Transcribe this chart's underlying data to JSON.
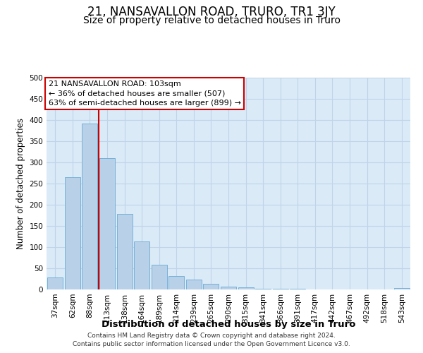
{
  "title": "21, NANSAVALLON ROAD, TRURO, TR1 3JY",
  "subtitle": "Size of property relative to detached houses in Truro",
  "xlabel": "Distribution of detached houses by size in Truro",
  "ylabel": "Number of detached properties",
  "footer_line1": "Contains HM Land Registry data © Crown copyright and database right 2024.",
  "footer_line2": "Contains public sector information licensed under the Open Government Licence v3.0.",
  "categories": [
    "37sqm",
    "62sqm",
    "88sqm",
    "113sqm",
    "138sqm",
    "164sqm",
    "189sqm",
    "214sqm",
    "239sqm",
    "265sqm",
    "290sqm",
    "315sqm",
    "341sqm",
    "366sqm",
    "391sqm",
    "417sqm",
    "442sqm",
    "467sqm",
    "492sqm",
    "518sqm",
    "543sqm"
  ],
  "values": [
    28,
    265,
    392,
    310,
    178,
    114,
    58,
    31,
    23,
    14,
    6,
    5,
    1,
    1,
    1,
    0,
    0,
    0,
    0,
    0,
    3
  ],
  "bar_color": "#b8d0e8",
  "bar_edge_color": "#6aaad4",
  "grid_color": "#c0d4e8",
  "background_color": "#daeaf7",
  "vline_color": "#cc0000",
  "vline_x_index": 2,
  "annotation_text": "21 NANSAVALLON ROAD: 103sqm\n← 36% of detached houses are smaller (507)\n63% of semi-detached houses are larger (899) →",
  "annotation_box_facecolor": "#ffffff",
  "annotation_box_edgecolor": "#cc0000",
  "ylim": [
    0,
    500
  ],
  "yticks": [
    0,
    50,
    100,
    150,
    200,
    250,
    300,
    350,
    400,
    450,
    500
  ],
  "title_fontsize": 12,
  "subtitle_fontsize": 10,
  "tick_fontsize": 7.5,
  "ylabel_fontsize": 8.5,
  "xlabel_fontsize": 9.5,
  "annotation_fontsize": 8,
  "footer_fontsize": 6.5
}
